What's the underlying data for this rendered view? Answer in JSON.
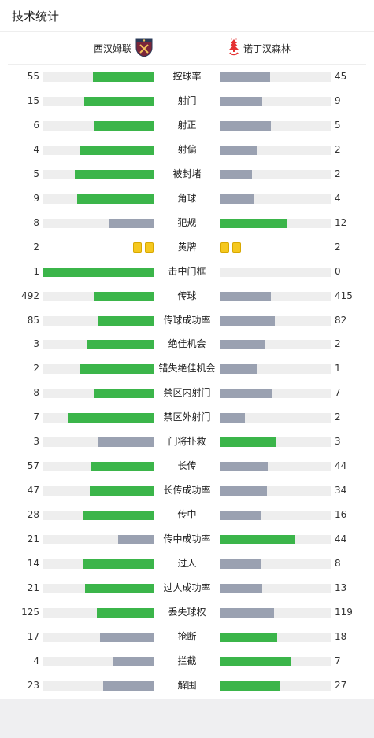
{
  "title": "技术统计",
  "home_team": {
    "name": "西汉姆联",
    "crest": "west-ham-crest-icon",
    "color": "#7a263a"
  },
  "away_team": {
    "name": "诺丁汉森林",
    "crest": "nottingham-forest-crest-icon",
    "color": "#e53233"
  },
  "colors": {
    "win": "#3bb54a",
    "lose": "#9aa1b1",
    "track": "#eeeeee",
    "yellow_card": "#f5c81f"
  },
  "stats": [
    {
      "label": "控球率",
      "home": "55",
      "away": "45",
      "home_frac": 0.55,
      "away_frac": 0.45
    },
    {
      "label": "射门",
      "home": "15",
      "away": "9",
      "home_frac": 0.625,
      "away_frac": 0.375
    },
    {
      "label": "射正",
      "home": "6",
      "away": "5",
      "home_frac": 0.545,
      "away_frac": 0.455
    },
    {
      "label": "射偏",
      "home": "4",
      "away": "2",
      "home_frac": 0.667,
      "away_frac": 0.333
    },
    {
      "label": "被封堵",
      "home": "5",
      "away": "2",
      "home_frac": 0.714,
      "away_frac": 0.286
    },
    {
      "label": "角球",
      "home": "9",
      "away": "4",
      "home_frac": 0.692,
      "away_frac": 0.308
    },
    {
      "label": "犯规",
      "home": "8",
      "away": "12",
      "home_frac": 0.4,
      "away_frac": 0.6
    },
    {
      "label": "黄牌",
      "home": "2",
      "away": "2",
      "type": "cards",
      "home_cards": 2,
      "away_cards": 2
    },
    {
      "label": "击中门框",
      "home": "1",
      "away": "0",
      "home_frac": 1.0,
      "away_frac": 0.0
    },
    {
      "label": "传球",
      "home": "492",
      "away": "415",
      "home_frac": 0.542,
      "away_frac": 0.458
    },
    {
      "label": "传球成功率",
      "home": "85",
      "away": "82",
      "home_frac": 0.509,
      "away_frac": 0.491
    },
    {
      "label": "绝佳机会",
      "home": "3",
      "away": "2",
      "home_frac": 0.6,
      "away_frac": 0.4
    },
    {
      "label": "错失绝佳机会",
      "home": "2",
      "away": "1",
      "home_frac": 0.667,
      "away_frac": 0.333
    },
    {
      "label": "禁区内射门",
      "home": "8",
      "away": "7",
      "home_frac": 0.533,
      "away_frac": 0.467
    },
    {
      "label": "禁区外射门",
      "home": "7",
      "away": "2",
      "home_frac": 0.778,
      "away_frac": 0.222
    },
    {
      "label": "门将扑救",
      "home": "3",
      "away": "3",
      "home_frac": 0.5,
      "away_frac": 0.5,
      "home_win": false,
      "away_win": true
    },
    {
      "label": "长传",
      "home": "57",
      "away": "44",
      "home_frac": 0.564,
      "away_frac": 0.436
    },
    {
      "label": "长传成功率",
      "home": "47",
      "away": "34",
      "home_frac": 0.58,
      "away_frac": 0.42
    },
    {
      "label": "传中",
      "home": "28",
      "away": "16",
      "home_frac": 0.636,
      "away_frac": 0.364
    },
    {
      "label": "传中成功率",
      "home": "21",
      "away": "44",
      "home_frac": 0.323,
      "away_frac": 0.677
    },
    {
      "label": "过人",
      "home": "14",
      "away": "8",
      "home_frac": 0.636,
      "away_frac": 0.364
    },
    {
      "label": "过人成功率",
      "home": "21",
      "away": "13",
      "home_frac": 0.618,
      "away_frac": 0.382
    },
    {
      "label": "丢失球权",
      "home": "125",
      "away": "119",
      "home_frac": 0.512,
      "away_frac": 0.488
    },
    {
      "label": "抢断",
      "home": "17",
      "away": "18",
      "home_frac": 0.486,
      "away_frac": 0.514
    },
    {
      "label": "拦截",
      "home": "4",
      "away": "7",
      "home_frac": 0.364,
      "away_frac": 0.636
    },
    {
      "label": "解围",
      "home": "23",
      "away": "27",
      "home_frac": 0.46,
      "away_frac": 0.54
    }
  ]
}
